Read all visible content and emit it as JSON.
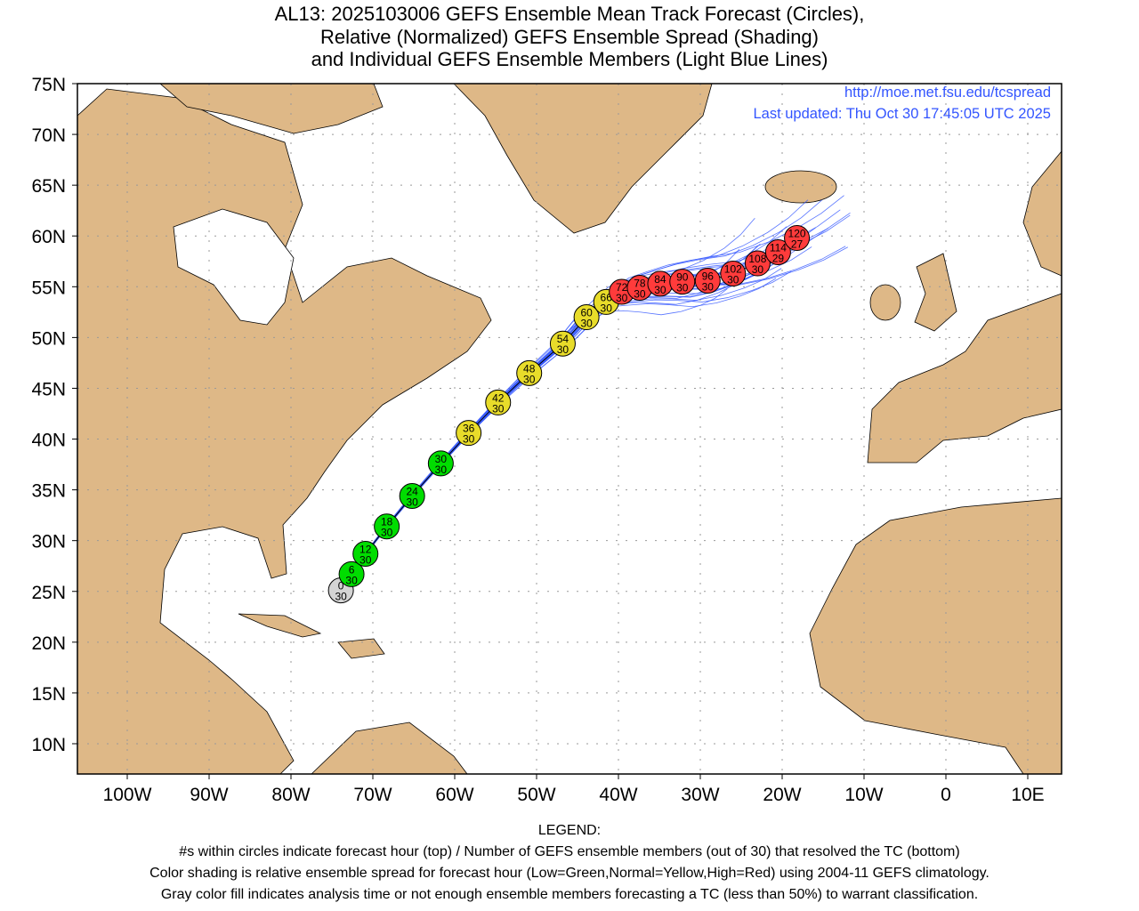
{
  "title": {
    "line1": "AL13: 2025103006 GEFS Ensemble Mean Track Forecast (Circles),",
    "line2": "Relative (Normalized) GEFS Ensemble Spread (Shading)",
    "line3": "and Individual GEFS Ensemble Members (Light Blue Lines)"
  },
  "credits": {
    "url": "http://moe.met.fsu.edu/tcspread",
    "updated": "Last updated: Thu Oct 30 17:45:05 UTC 2025"
  },
  "axes": {
    "lat_labels": [
      "75N",
      "70N",
      "65N",
      "60N",
      "55N",
      "50N",
      "45N",
      "40N",
      "35N",
      "30N",
      "25N",
      "20N",
      "15N",
      "10N"
    ],
    "lat_values": [
      75,
      70,
      65,
      60,
      55,
      50,
      45,
      40,
      35,
      30,
      25,
      20,
      15,
      10
    ],
    "lon_labels": [
      "100W",
      "90W",
      "80W",
      "70W",
      "60W",
      "50W",
      "40W",
      "30W",
      "20W",
      "10W",
      "0",
      "10E"
    ],
    "lon_values": [
      -100,
      -90,
      -80,
      -70,
      -60,
      -50,
      -40,
      -30,
      -20,
      -10,
      0,
      10
    ],
    "lon_range": [
      -106,
      14
    ],
    "lat_range": [
      7,
      75
    ]
  },
  "colors": {
    "low": "#00dd00",
    "normal": "#e8dc2a",
    "high": "#ff3b3b",
    "gray": "#d4d4d4",
    "land": "#deb887",
    "members": "#3a5cff"
  },
  "track": [
    {
      "hour": "0",
      "members": "30",
      "lat": 25.1,
      "lon": -73.9,
      "spread": "gray"
    },
    {
      "hour": "6",
      "members": "30",
      "lat": 26.7,
      "lon": -72.6,
      "spread": "low"
    },
    {
      "hour": "12",
      "members": "30",
      "lat": 28.7,
      "lon": -70.9,
      "spread": "low"
    },
    {
      "hour": "18",
      "members": "30",
      "lat": 31.4,
      "lon": -68.3,
      "spread": "low"
    },
    {
      "hour": "24",
      "members": "30",
      "lat": 34.4,
      "lon": -65.2,
      "spread": "low"
    },
    {
      "hour": "30",
      "members": "30",
      "lat": 37.6,
      "lon": -61.7,
      "spread": "low"
    },
    {
      "hour": "36",
      "members": "30",
      "lat": 40.6,
      "lon": -58.3,
      "spread": "normal"
    },
    {
      "hour": "42",
      "members": "30",
      "lat": 43.6,
      "lon": -54.7,
      "spread": "normal"
    },
    {
      "hour": "48",
      "members": "30",
      "lat": 46.5,
      "lon": -50.9,
      "spread": "normal"
    },
    {
      "hour": "54",
      "members": "30",
      "lat": 49.4,
      "lon": -46.8,
      "spread": "normal"
    },
    {
      "hour": "60",
      "members": "30",
      "lat": 52.0,
      "lon": -43.9,
      "spread": "normal"
    },
    {
      "hour": "66",
      "members": "30",
      "lat": 53.5,
      "lon": -41.5,
      "spread": "normal"
    },
    {
      "hour": "72",
      "members": "30",
      "lat": 54.5,
      "lon": -39.6,
      "spread": "high"
    },
    {
      "hour": "78",
      "members": "30",
      "lat": 54.9,
      "lon": -37.4,
      "spread": "high"
    },
    {
      "hour": "84",
      "members": "30",
      "lat": 55.3,
      "lon": -34.9,
      "spread": "high"
    },
    {
      "hour": "90",
      "members": "30",
      "lat": 55.5,
      "lon": -32.2,
      "spread": "high"
    },
    {
      "hour": "96",
      "members": "30",
      "lat": 55.6,
      "lon": -29.1,
      "spread": "high"
    },
    {
      "hour": "102",
      "members": "30",
      "lat": 56.3,
      "lon": -26.0,
      "spread": "high"
    },
    {
      "hour": "108",
      "members": "30",
      "lat": 57.3,
      "lon": -23.0,
      "spread": "high"
    },
    {
      "hour": "114",
      "members": "29",
      "lat": 58.4,
      "lon": -20.5,
      "spread": "high"
    },
    {
      "hour": "120",
      "members": "27",
      "lat": 59.8,
      "lon": -18.2,
      "spread": "high"
    }
  ],
  "legend": {
    "heading": "LEGEND:",
    "line1": "#s within circles indicate forecast hour (top) / Number of GEFS ensemble members (out of 30) that resolved the TC (bottom)",
    "line2": "Color shading is relative ensemble spread for forecast hour (Low=Green,Normal=Yellow,High=Red) using 2004-11 GEFS climatology.",
    "line3": "Gray color fill indicates analysis time or not enough ensemble members forecasting a TC (less than 50%) to warrant classification."
  }
}
